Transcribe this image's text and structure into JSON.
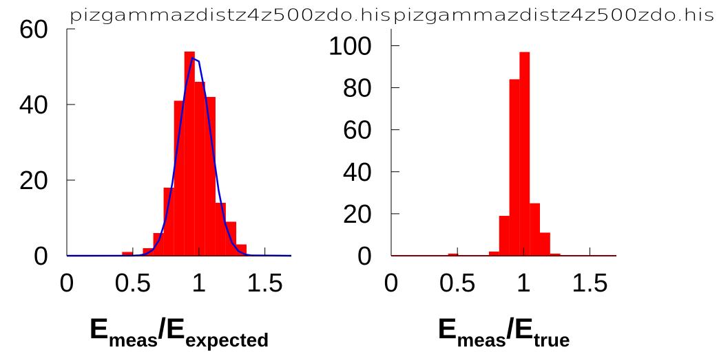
{
  "chart_data": [
    {
      "type": "histogram",
      "title": "pizgammazdistz4z500zdo.his",
      "xlabel": [
        "E",
        "meas",
        "/E",
        "expected"
      ],
      "bins": [
        0.419,
        0.498,
        0.576,
        0.655,
        0.733,
        0.812,
        0.89,
        0.969,
        1.047,
        1.126,
        1.204,
        1.283,
        1.361
      ],
      "values": [
        1,
        0,
        2,
        6,
        18,
        41,
        54,
        46,
        42,
        14,
        9,
        3
      ],
      "color": "#ff0000",
      "fit": {
        "color": "#0000dd",
        "x": [
          0,
          0.5,
          0.55,
          0.6,
          0.65,
          0.7,
          0.75,
          0.8,
          0.85,
          0.9,
          0.95,
          1.0,
          1.05,
          1.1,
          1.15,
          1.2,
          1.25,
          1.3,
          1.35,
          1.4,
          1.7
        ],
        "values": [
          0,
          0.02,
          0.12,
          0.46,
          1.5,
          4.2,
          9.9,
          19.4,
          32.1,
          44.7,
          52.3,
          51.4,
          42.4,
          29.5,
          17.2,
          8.4,
          3.5,
          1.2,
          0.35,
          0.08,
          0
        ]
      },
      "xlim": [
        0,
        1.7
      ],
      "ylim": [
        0,
        60
      ],
      "xticks": [
        0,
        0.5,
        1,
        1.5
      ],
      "yticks": [
        0,
        20,
        40,
        60
      ]
    },
    {
      "type": "histogram",
      "title": "pizgammazdistz4z500zdo.his",
      "xlabel": [
        "E",
        "meas",
        "/E",
        "true"
      ],
      "bins": [
        0.43,
        0.507,
        0.584,
        0.661,
        0.738,
        0.815,
        0.892,
        0.969,
        1.046,
        1.123,
        1.2,
        1.277
      ],
      "values": [
        1,
        0,
        0,
        0,
        2,
        19,
        84,
        97,
        25,
        11,
        1
      ],
      "color": "#ff0000",
      "xlim": [
        0,
        1.7
      ],
      "ylim": [
        0,
        108
      ],
      "xticks": [
        0,
        0.5,
        1,
        1.5
      ],
      "yticks": [
        0,
        20,
        40,
        60,
        80,
        100
      ]
    }
  ]
}
